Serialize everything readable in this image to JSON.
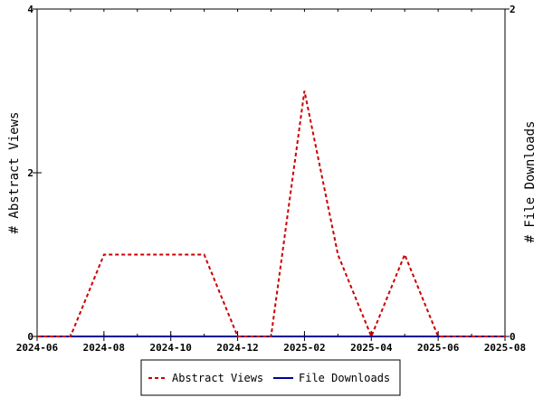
{
  "chart_data": {
    "type": "line",
    "x_axis": {
      "type": "date",
      "range": [
        "2024-06",
        "2025-08"
      ],
      "tick_labels": [
        "2024-06",
        "2024-08",
        "2024-10",
        "2024-12",
        "2025-02",
        "2025-04",
        "2025-06",
        "2025-08"
      ]
    },
    "y_left": {
      "label": "# Abstract Views",
      "range": [
        0,
        4
      ],
      "tick_labels": [
        "0",
        "2",
        "4"
      ]
    },
    "y_right": {
      "label": "# File Downloads",
      "range": [
        0,
        2
      ],
      "tick_labels": [
        "0",
        "2"
      ]
    },
    "grid": false,
    "legend_position": "bottom",
    "series": [
      {
        "name": "Abstract Views",
        "axis": "left",
        "color": "#cc0000",
        "line_style": "dashed",
        "x": [
          "2024-06",
          "2024-07",
          "2024-08",
          "2024-09",
          "2024-10",
          "2024-11",
          "2024-12",
          "2025-01",
          "2025-02",
          "2025-03",
          "2025-04",
          "2025-05",
          "2025-06",
          "2025-07",
          "2025-08"
        ],
        "values": [
          0,
          0,
          1,
          1,
          1,
          1,
          0,
          0,
          3,
          1,
          0,
          1,
          0,
          0,
          0
        ]
      },
      {
        "name": "File Downloads",
        "axis": "right",
        "color": "#000099",
        "line_style": "solid",
        "x": [
          "2024-06",
          "2024-07",
          "2024-08",
          "2024-09",
          "2024-10",
          "2024-11",
          "2024-12",
          "2025-01",
          "2025-02",
          "2025-03",
          "2025-04",
          "2025-05",
          "2025-06",
          "2025-07",
          "2025-08"
        ],
        "values": [
          0,
          0,
          0,
          0,
          0,
          0,
          0,
          0,
          0,
          0,
          0,
          0,
          0,
          0,
          0
        ]
      }
    ]
  }
}
